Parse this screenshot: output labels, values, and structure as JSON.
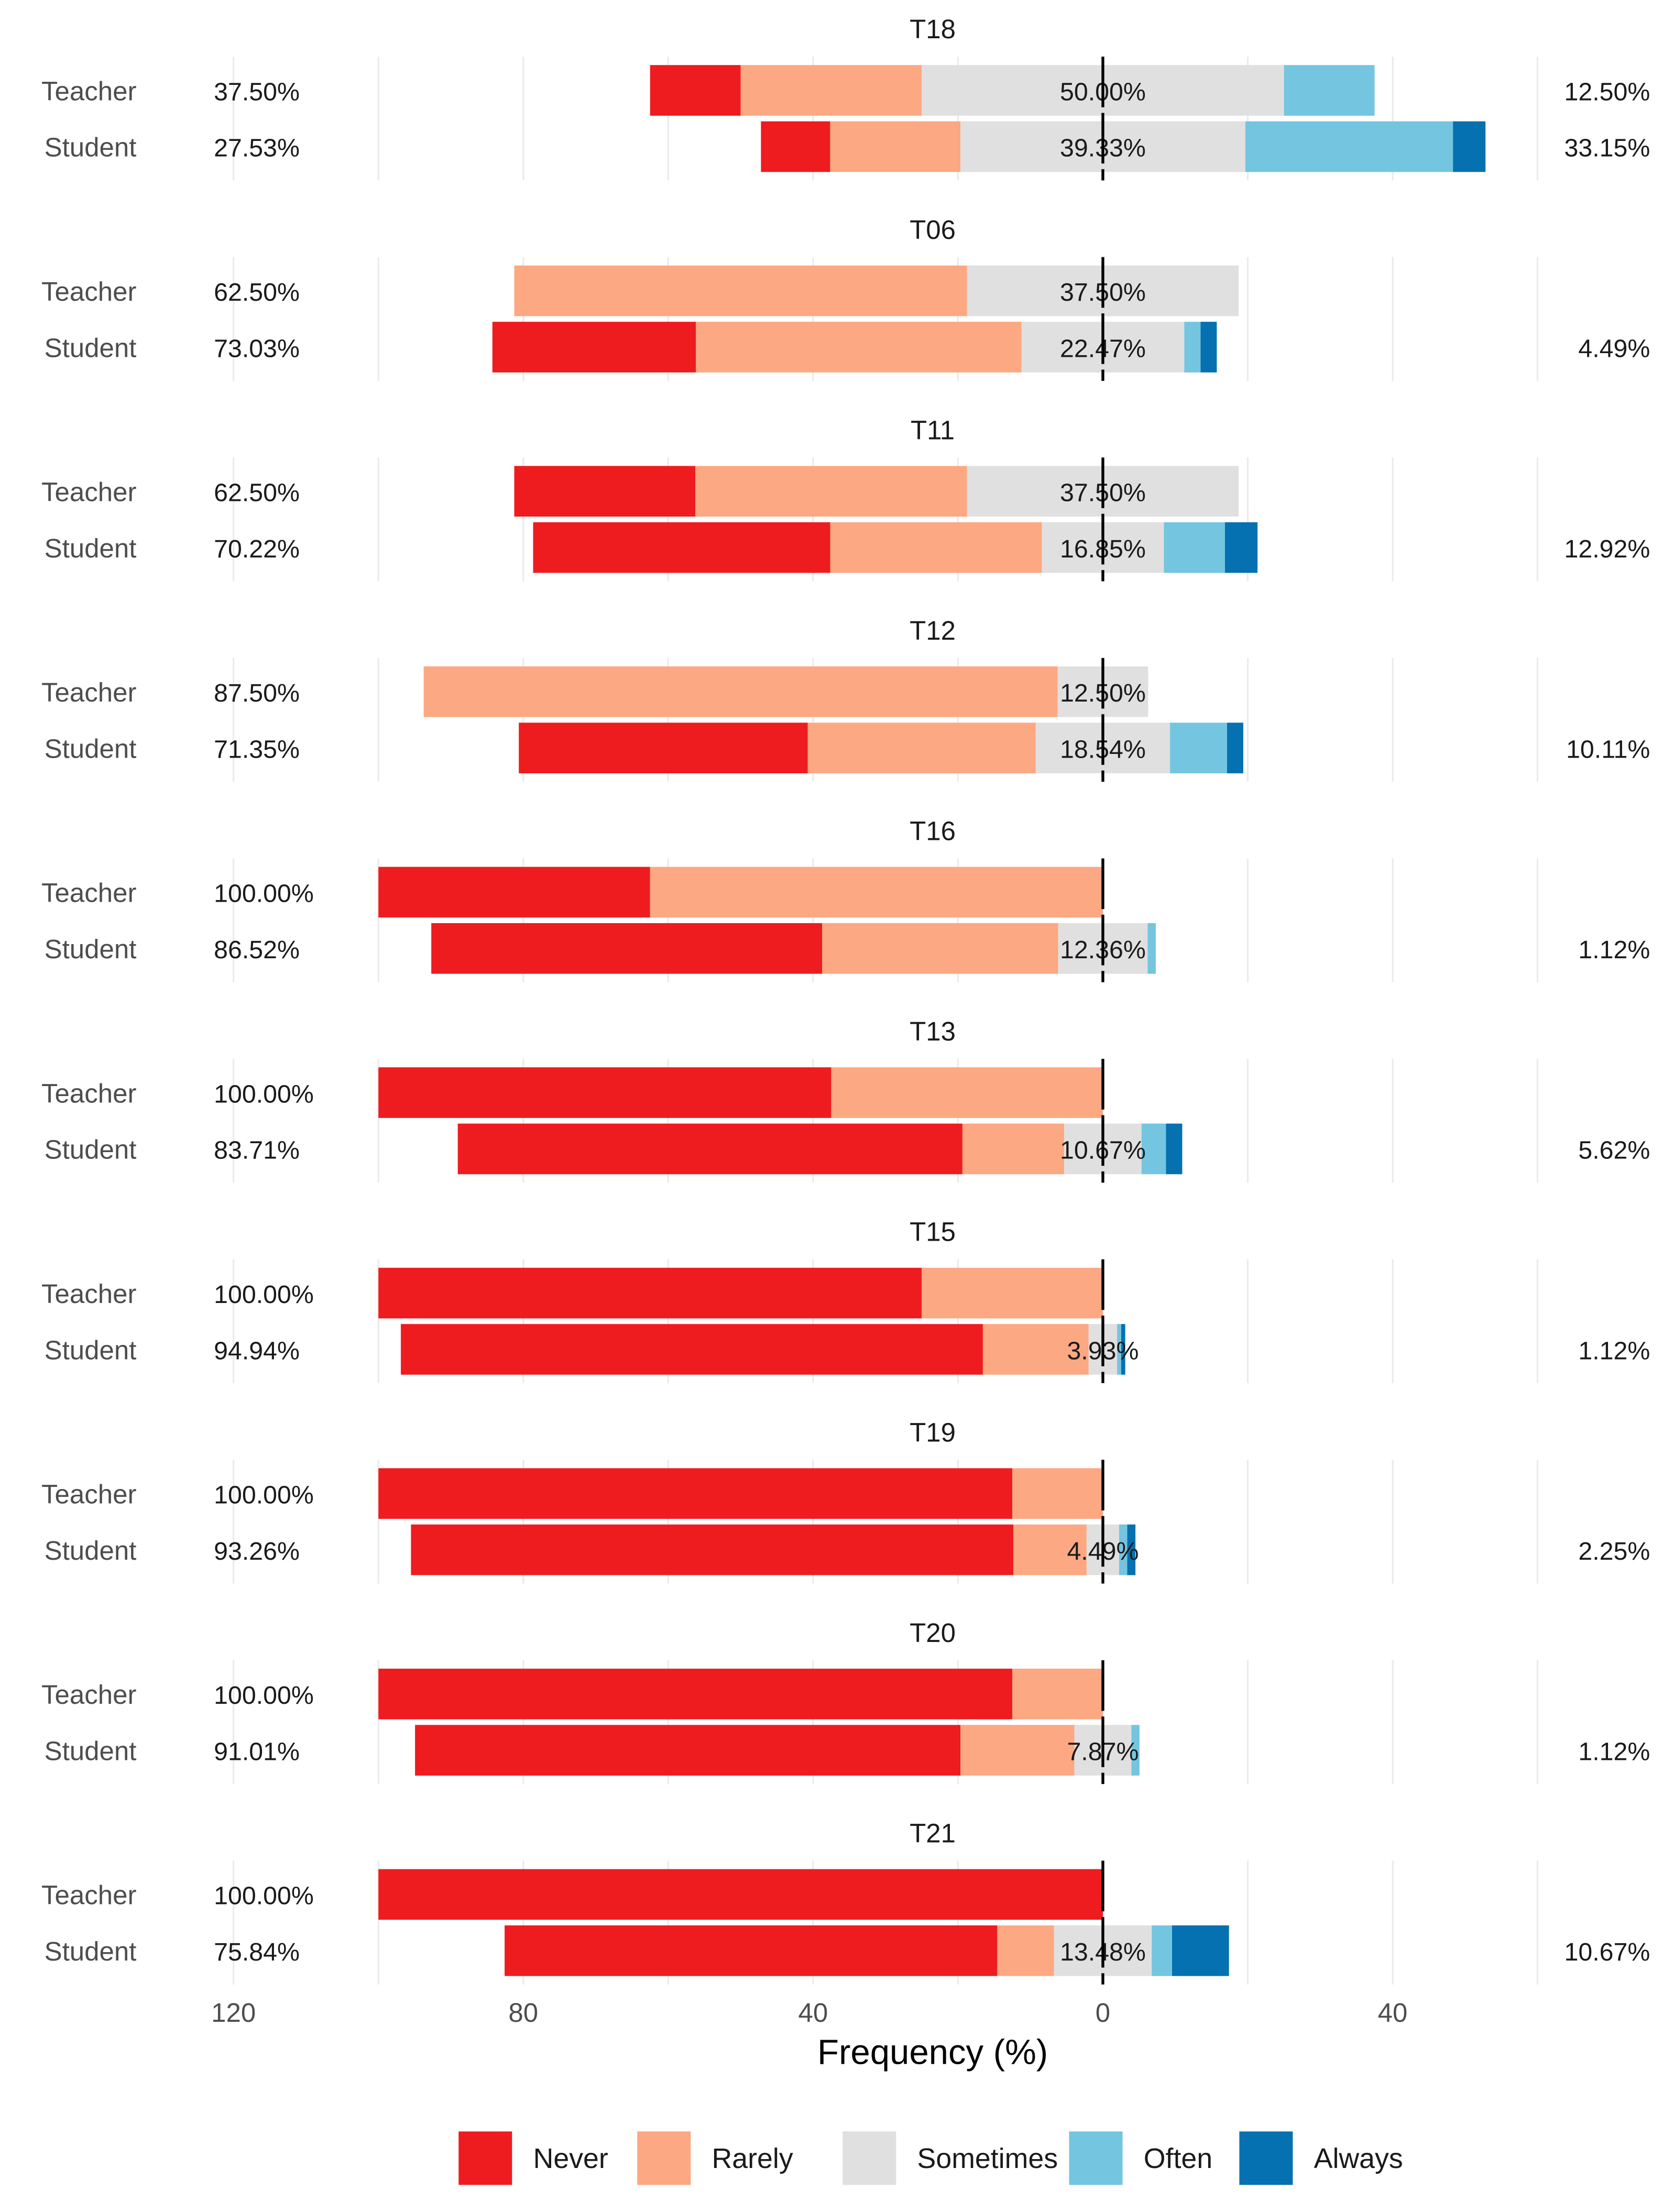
{
  "chart_data": {
    "type": "bar",
    "subtype": "diverging-stacked-likert",
    "xlabel": "Frequency (%)",
    "xlim": [
      -125,
      75
    ],
    "x_ticks": [
      -120,
      -80,
      -40,
      0,
      40
    ],
    "x_tick_labels": [
      "120",
      "80",
      "40",
      "0",
      "40"
    ],
    "grid": true,
    "legend_position": "bottom",
    "levels": [
      "Never",
      "Rarely",
      "Sometimes",
      "Often",
      "Always"
    ],
    "colors": {
      "Never": "#EE1C1F",
      "Rarely": "#FCA882",
      "Sometimes": "#E0E0E0",
      "Often": "#74C5E0",
      "Always": "#0571B0"
    },
    "panels": [
      {
        "title": "T18",
        "rows": [
          {
            "group": "Teacher",
            "values": [
              12.5,
              25.0,
              50.0,
              12.5,
              0
            ],
            "left_label": "37.50%",
            "mid_label": "50.00%",
            "right_label": "12.50%"
          },
          {
            "group": "Student",
            "values": [
              9.55,
              17.98,
              39.33,
              28.66,
              4.49
            ],
            "left_label": "27.53%",
            "mid_label": "39.33%",
            "right_label": "33.15%"
          }
        ]
      },
      {
        "title": "T06",
        "rows": [
          {
            "group": "Teacher",
            "values": [
              0,
              62.5,
              37.5,
              0,
              0
            ],
            "left_label": "62.50%",
            "mid_label": "37.50%",
            "right_label": ""
          },
          {
            "group": "Student",
            "values": [
              28.09,
              44.94,
              22.47,
              2.25,
              2.24
            ],
            "left_label": "73.03%",
            "mid_label": "22.47%",
            "right_label": "4.49%"
          }
        ]
      },
      {
        "title": "T11",
        "rows": [
          {
            "group": "Teacher",
            "values": [
              25.0,
              37.5,
              37.5,
              0,
              0
            ],
            "left_label": "62.50%",
            "mid_label": "37.50%",
            "right_label": ""
          },
          {
            "group": "Student",
            "values": [
              41.01,
              29.21,
              16.85,
              8.43,
              4.49
            ],
            "left_label": "70.22%",
            "mid_label": "16.85%",
            "right_label": "12.92%"
          }
        ]
      },
      {
        "title": "T12",
        "rows": [
          {
            "group": "Teacher",
            "values": [
              0,
              87.5,
              12.5,
              0,
              0
            ],
            "left_label": "87.50%",
            "mid_label": "12.50%",
            "right_label": ""
          },
          {
            "group": "Student",
            "values": [
              39.89,
              31.46,
              18.54,
              7.87,
              2.24
            ],
            "left_label": "71.35%",
            "mid_label": "18.54%",
            "right_label": "10.11%"
          }
        ]
      },
      {
        "title": "T16",
        "rows": [
          {
            "group": "Teacher",
            "values": [
              37.5,
              62.5,
              0,
              0,
              0
            ],
            "left_label": "100.00%",
            "mid_label": "",
            "right_label": ""
          },
          {
            "group": "Student",
            "values": [
              53.94,
              32.58,
              12.36,
              1.12,
              0
            ],
            "left_label": "86.52%",
            "mid_label": "12.36%",
            "right_label": "1.12%"
          }
        ]
      },
      {
        "title": "T13",
        "rows": [
          {
            "group": "Teacher",
            "values": [
              62.5,
              37.5,
              0,
              0,
              0
            ],
            "left_label": "100.00%",
            "mid_label": "",
            "right_label": ""
          },
          {
            "group": "Student",
            "values": [
              69.66,
              14.05,
              10.67,
              3.37,
              2.25
            ],
            "left_label": "83.71%",
            "mid_label": "10.67%",
            "right_label": "5.62%"
          }
        ]
      },
      {
        "title": "T15",
        "rows": [
          {
            "group": "Teacher",
            "values": [
              75.0,
              25.0,
              0,
              0,
              0
            ],
            "left_label": "100.00%",
            "mid_label": "",
            "right_label": ""
          },
          {
            "group": "Student",
            "values": [
              80.34,
              14.6,
              3.93,
              0.56,
              0.56
            ],
            "left_label": "94.94%",
            "mid_label": "3.93%",
            "right_label": "1.12%"
          }
        ]
      },
      {
        "title": "T19",
        "rows": [
          {
            "group": "Teacher",
            "values": [
              87.5,
              12.5,
              0,
              0,
              0
            ],
            "left_label": "100.00%",
            "mid_label": "",
            "right_label": ""
          },
          {
            "group": "Student",
            "values": [
              83.15,
              10.11,
              4.49,
              1.12,
              1.13
            ],
            "left_label": "93.26%",
            "mid_label": "4.49%",
            "right_label": "2.25%"
          }
        ]
      },
      {
        "title": "T20",
        "rows": [
          {
            "group": "Teacher",
            "values": [
              87.5,
              12.5,
              0,
              0,
              0
            ],
            "left_label": "100.00%",
            "mid_label": "",
            "right_label": ""
          },
          {
            "group": "Student",
            "values": [
              75.28,
              15.73,
              7.87,
              1.12,
              0
            ],
            "left_label": "91.01%",
            "mid_label": "7.87%",
            "right_label": "1.12%"
          }
        ]
      },
      {
        "title": "T21",
        "rows": [
          {
            "group": "Teacher",
            "values": [
              100.0,
              0,
              0,
              0,
              0
            ],
            "left_label": "100.00%",
            "mid_label": "",
            "right_label": ""
          },
          {
            "group": "Student",
            "values": [
              68.0,
              7.84,
              13.48,
              2.81,
              7.86
            ],
            "left_label": "75.84%",
            "mid_label": "13.48%",
            "right_label": "10.67%"
          }
        ]
      }
    ]
  }
}
